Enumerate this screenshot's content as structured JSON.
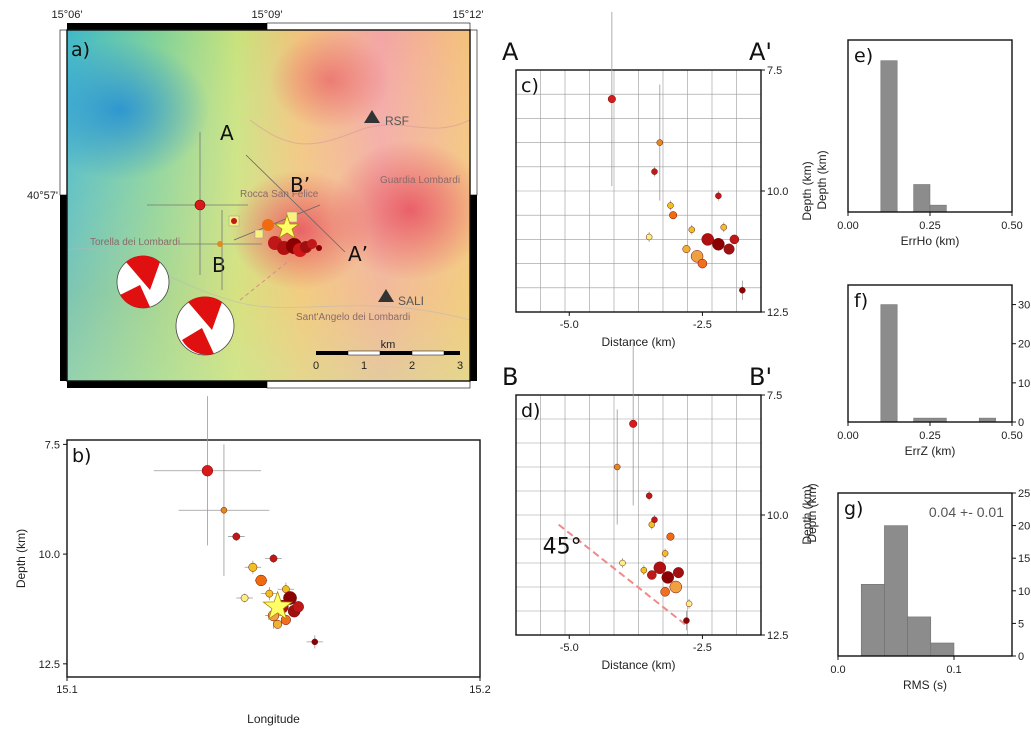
{
  "panel_a": {
    "label": "a)",
    "lon_ticks": [
      "15°06'",
      "15°09'",
      "15°12'"
    ],
    "lat_tick": "40°57'",
    "section_A": "A",
    "section_A2": "A’",
    "section_B": "B",
    "section_B2": "B’",
    "stations": [
      {
        "name": "RSF"
      },
      {
        "name": "SALI"
      }
    ],
    "towns": [
      {
        "name": "Rocca San Felice"
      },
      {
        "name": "Guardia Lombardi"
      },
      {
        "name": "Torella dei Lombardi"
      },
      {
        "name": "Sant'Angelo dei Lombardi"
      }
    ],
    "scalebar": {
      "unit": "km",
      "ticks": [
        "0",
        "1",
        "2",
        "3"
      ]
    },
    "colors": {
      "event_dark": "#8b0000",
      "event_red": "#d81a1a",
      "event_orange": "#f06a10",
      "event_yellow": "#f0e060",
      "mainshock_star": "#ffff66",
      "beachball": "#e01010"
    }
  },
  "chart_data": [
    {
      "id": "b",
      "label": "b)",
      "type": "scatter",
      "xlabel": "Longitude",
      "ylabel": "Depth (km)",
      "xlim": [
        15.1,
        15.2
      ],
      "ylim": [
        12.8,
        7.4
      ],
      "x_ticks": [
        "15.1",
        "15.2"
      ],
      "y_ticks": [
        "7.5",
        "10.0",
        "12.5"
      ],
      "y_tick_values": [
        7.5,
        10.0,
        12.5
      ],
      "points": [
        {
          "x": 15.134,
          "y": 8.1,
          "c": "#d81a1a",
          "s": 9,
          "ex": 0.013,
          "ey": 1.7
        },
        {
          "x": 15.138,
          "y": 9.0,
          "c": "#e08a20",
          "s": 5,
          "ex": 0.011,
          "ey": 1.5
        },
        {
          "x": 15.141,
          "y": 9.6,
          "c": "#c01818",
          "s": 6,
          "ex": 0.002,
          "ey": 0.1
        },
        {
          "x": 15.145,
          "y": 10.3,
          "c": "#f0c020",
          "s": 7,
          "ex": 0.002,
          "ey": 0.15
        },
        {
          "x": 15.147,
          "y": 10.6,
          "c": "#f06a10",
          "s": 9,
          "ex": 0.0015,
          "ey": 0.1
        },
        {
          "x": 15.15,
          "y": 10.1,
          "c": "#c01818",
          "s": 6,
          "ex": 0.002,
          "ey": 0.1
        },
        {
          "x": 15.143,
          "y": 11.0,
          "c": "#f8f080",
          "s": 6,
          "ex": 0.002,
          "ey": 0.1
        },
        {
          "x": 15.149,
          "y": 10.9,
          "c": "#f0c020",
          "s": 6,
          "ex": 0.002,
          "ey": 0.15
        },
        {
          "x": 15.153,
          "y": 10.8,
          "c": "#f0c020",
          "s": 6,
          "ex": 0.002,
          "ey": 0.15
        },
        {
          "x": 15.15,
          "y": 11.4,
          "c": "#f0a040",
          "s": 9,
          "ex": 0.002,
          "ey": 0.3
        },
        {
          "x": 15.152,
          "y": 11.2,
          "c": "#b01010",
          "s": 11,
          "ex": 0,
          "ey": 0
        },
        {
          "x": 15.154,
          "y": 11.0,
          "c": "#8b0000",
          "s": 11,
          "ex": 0,
          "ey": 0
        },
        {
          "x": 15.155,
          "y": 11.3,
          "c": "#a01010",
          "s": 10,
          "ex": 0,
          "ey": 0
        },
        {
          "x": 15.153,
          "y": 11.5,
          "c": "#f07020",
          "s": 8,
          "ex": 0,
          "ey": 0
        },
        {
          "x": 15.156,
          "y": 11.2,
          "c": "#c01818",
          "s": 9,
          "ex": 0,
          "ey": 0
        },
        {
          "x": 15.151,
          "y": 11.6,
          "c": "#f0b030",
          "s": 7,
          "ex": 0,
          "ey": 0
        },
        {
          "x": 15.16,
          "y": 12.0,
          "c": "#8b0000",
          "s": 5,
          "ex": 0.002,
          "ey": 0.15
        }
      ],
      "star": {
        "x": 15.151,
        "y": 11.2,
        "c": "#ffff66"
      }
    },
    {
      "id": "c",
      "label": "c)",
      "type": "scatter",
      "section_start": "A",
      "section_end": "A'",
      "xlabel": "Distance (km)",
      "ylabel": "Depth (km)",
      "xlim": [
        -6.0,
        -1.4
      ],
      "ylim": [
        12.5,
        7.5
      ],
      "x_ticks": [
        "-5.0",
        "-2.5"
      ],
      "x_tick_values": [
        -5.0,
        -2.5
      ],
      "y_ticks": [
        "7.5",
        "10.0",
        "12.5"
      ],
      "y_tick_values": [
        7.5,
        10.0,
        12.5
      ],
      "points": [
        {
          "x": -4.2,
          "y": 8.1,
          "c": "#d81a1a",
          "s": 5,
          "ex": 0,
          "ey": 1.8
        },
        {
          "x": -3.3,
          "y": 9.0,
          "c": "#e08a20",
          "s": 4,
          "ex": 0,
          "ey": 1.2
        },
        {
          "x": -3.4,
          "y": 9.6,
          "c": "#c01818",
          "s": 4,
          "ex": 0,
          "ey": 0.1
        },
        {
          "x": -3.1,
          "y": 10.3,
          "c": "#f0c020",
          "s": 4,
          "ex": 0,
          "ey": 0.1
        },
        {
          "x": -3.05,
          "y": 10.5,
          "c": "#f06a10",
          "s": 5,
          "ex": 0,
          "ey": 0
        },
        {
          "x": -2.2,
          "y": 10.1,
          "c": "#c01818",
          "s": 4,
          "ex": 0,
          "ey": 0.1
        },
        {
          "x": -3.5,
          "y": 10.95,
          "c": "#f8f080",
          "s": 4,
          "ex": 0,
          "ey": 0.1
        },
        {
          "x": -2.7,
          "y": 10.8,
          "c": "#f0c020",
          "s": 4,
          "ex": 0,
          "ey": 0.1
        },
        {
          "x": -2.1,
          "y": 10.75,
          "c": "#f0c020",
          "s": 4,
          "ex": 0,
          "ey": 0.1
        },
        {
          "x": -2.6,
          "y": 11.35,
          "c": "#f0a040",
          "s": 8,
          "ex": 0,
          "ey": 0
        },
        {
          "x": -2.4,
          "y": 11.0,
          "c": "#b01010",
          "s": 8,
          "ex": 0,
          "ey": 0
        },
        {
          "x": -2.2,
          "y": 11.1,
          "c": "#8b0000",
          "s": 8,
          "ex": 0,
          "ey": 0
        },
        {
          "x": -2.0,
          "y": 11.2,
          "c": "#a01010",
          "s": 7,
          "ex": 0,
          "ey": 0
        },
        {
          "x": -2.5,
          "y": 11.5,
          "c": "#f07020",
          "s": 6,
          "ex": 0,
          "ey": 0
        },
        {
          "x": -1.9,
          "y": 11.0,
          "c": "#c01818",
          "s": 6,
          "ex": 0,
          "ey": 0
        },
        {
          "x": -2.8,
          "y": 11.2,
          "c": "#f0b030",
          "s": 5,
          "ex": 0,
          "ey": 0
        },
        {
          "x": -1.75,
          "y": 12.05,
          "c": "#8b0000",
          "s": 4,
          "ex": 0,
          "ey": 0.2
        }
      ]
    },
    {
      "id": "d",
      "label": "d)",
      "type": "scatter",
      "section_start": "B",
      "section_end": "B'",
      "xlabel": "Distance (km)",
      "ylabel": "Depth (km)",
      "annotation": "45°",
      "xlim": [
        -6.0,
        -1.4
      ],
      "ylim": [
        12.5,
        7.5
      ],
      "x_ticks": [
        "-5.0",
        "-2.5"
      ],
      "x_tick_values": [
        -5.0,
        -2.5
      ],
      "y_ticks": [
        "7.5",
        "10.0",
        "12.5"
      ],
      "y_tick_values": [
        7.5,
        10.0,
        12.5
      ],
      "dip_line": [
        [
          -5.2,
          10.2
        ],
        [
          -2.8,
          12.3
        ]
      ],
      "points": [
        {
          "x": -3.8,
          "y": 8.1,
          "c": "#d81a1a",
          "s": 5,
          "ex": 0,
          "ey": 1.7
        },
        {
          "x": -4.1,
          "y": 9.0,
          "c": "#e08a20",
          "s": 4,
          "ex": 0,
          "ey": 1.2
        },
        {
          "x": -3.5,
          "y": 9.6,
          "c": "#c01818",
          "s": 4,
          "ex": 0,
          "ey": 0.1
        },
        {
          "x": -3.45,
          "y": 10.2,
          "c": "#f0c020",
          "s": 4,
          "ex": 0,
          "ey": 0.1
        },
        {
          "x": -3.1,
          "y": 10.45,
          "c": "#f06a10",
          "s": 5,
          "ex": 0,
          "ey": 0
        },
        {
          "x": -3.4,
          "y": 10.1,
          "c": "#c01818",
          "s": 4,
          "ex": 0,
          "ey": 0.1
        },
        {
          "x": -4.0,
          "y": 11.0,
          "c": "#f8f080",
          "s": 4,
          "ex": 0,
          "ey": 0.1
        },
        {
          "x": -3.2,
          "y": 10.8,
          "c": "#f0c020",
          "s": 4,
          "ex": 0,
          "ey": 0.1
        },
        {
          "x": -3.6,
          "y": 11.15,
          "c": "#f0c020",
          "s": 4,
          "ex": 0,
          "ey": 0.1
        },
        {
          "x": -3.0,
          "y": 11.5,
          "c": "#f0a040",
          "s": 8,
          "ex": 0,
          "ey": 0
        },
        {
          "x": -3.3,
          "y": 11.1,
          "c": "#b01010",
          "s": 8,
          "ex": 0,
          "ey": 0
        },
        {
          "x": -3.15,
          "y": 11.3,
          "c": "#8b0000",
          "s": 8,
          "ex": 0,
          "ey": 0
        },
        {
          "x": -2.95,
          "y": 11.2,
          "c": "#a01010",
          "s": 7,
          "ex": 0,
          "ey": 0
        },
        {
          "x": -3.2,
          "y": 11.6,
          "c": "#f07020",
          "s": 6,
          "ex": 0,
          "ey": 0
        },
        {
          "x": -3.45,
          "y": 11.25,
          "c": "#c01818",
          "s": 6,
          "ex": 0,
          "ey": 0
        },
        {
          "x": -2.75,
          "y": 11.85,
          "c": "#f8f080",
          "s": 4,
          "ex": 0,
          "ey": 0.1
        },
        {
          "x": -2.8,
          "y": 12.2,
          "c": "#8b0000",
          "s": 4,
          "ex": 0,
          "ey": 0.2
        }
      ]
    },
    {
      "id": "e",
      "label": "e)",
      "type": "bar",
      "xlabel": "ErrHo (km)",
      "ylabel": "Depth (km)",
      "xlim": [
        0,
        0.5
      ],
      "x_ticks": [
        "0.00",
        "0.25",
        "0.50"
      ],
      "x_tick_values": [
        0,
        0.25,
        0.5
      ],
      "ylim": [
        0,
        25
      ],
      "bins": [
        [
          0.1,
          0.15
        ],
        [
          0.2,
          0.25
        ],
        [
          0.25,
          0.3
        ]
      ],
      "values": [
        22,
        4,
        1
      ]
    },
    {
      "id": "f",
      "label": "f)",
      "type": "bar",
      "xlabel": "ErrZ (km)",
      "xlim": [
        0,
        0.5
      ],
      "x_ticks": [
        "0.00",
        "0.25",
        "0.50"
      ],
      "x_tick_values": [
        0,
        0.25,
        0.5
      ],
      "ylim": [
        0,
        35
      ],
      "y_ticks": [
        "30",
        "20",
        "10",
        "0"
      ],
      "y_tick_values": [
        30,
        20,
        10,
        0
      ],
      "bins": [
        [
          0.1,
          0.15
        ],
        [
          0.2,
          0.3
        ],
        [
          0.4,
          0.45
        ]
      ],
      "values": [
        30,
        1,
        1
      ]
    },
    {
      "id": "g",
      "label": "g)",
      "type": "bar",
      "xlabel": "RMS (s)",
      "ylabel": "Depth (km)",
      "annotation": "0.04 +- 0.01",
      "xlim": [
        0,
        0.15
      ],
      "x_ticks": [
        "0.0",
        "0.1"
      ],
      "x_tick_values": [
        0,
        0.1
      ],
      "ylim": [
        0,
        25
      ],
      "y_ticks": [
        "25",
        "20",
        "15",
        "10",
        "5",
        "0"
      ],
      "y_tick_values": [
        25,
        20,
        15,
        10,
        5,
        0
      ],
      "bins": [
        [
          0.02,
          0.04
        ],
        [
          0.04,
          0.06
        ],
        [
          0.06,
          0.08
        ],
        [
          0.08,
          0.1
        ]
      ],
      "values": [
        11,
        20,
        6,
        2
      ]
    }
  ]
}
